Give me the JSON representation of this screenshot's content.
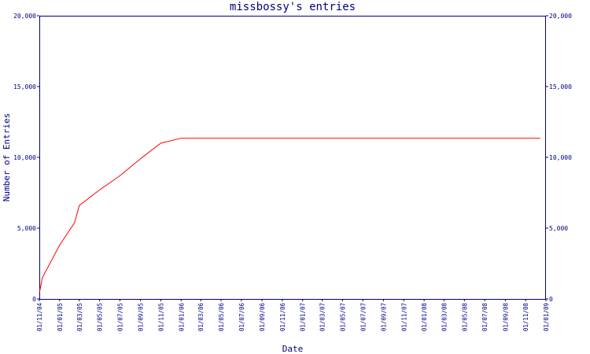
{
  "chart_data": {
    "type": "line",
    "title": "missbossy's entries",
    "xlabel": "Date",
    "ylabel": "Number of Entries",
    "ylim": [
      0,
      20000
    ],
    "yticks": [
      0,
      5000,
      10000,
      15000,
      20000
    ],
    "ytick_labels": [
      "0",
      "5,000",
      "10,000",
      "15,000",
      "20,000"
    ],
    "secondary_y_axis": true,
    "grid": false,
    "legend": "none",
    "xticks": [
      "01/11/04",
      "01/01/05",
      "01/03/05",
      "01/05/05",
      "01/07/05",
      "01/09/05",
      "01/11/05",
      "01/01/06",
      "01/03/06",
      "01/05/06",
      "01/07/06",
      "01/09/06",
      "01/11/06",
      "01/01/07",
      "01/03/07",
      "01/05/07",
      "01/07/07",
      "01/09/07",
      "01/11/07",
      "01/01/08",
      "01/03/08",
      "01/05/08",
      "01/07/08",
      "01/09/08",
      "01/11/08",
      "01/01/09"
    ],
    "series": [
      {
        "x": [
          "01/11/04",
          "10/11/04",
          "01/01/05",
          "15/02/05",
          "01/03/05",
          "01/05/05",
          "01/07/05",
          "01/09/05",
          "01/11/05",
          "01/01/06",
          "01/03/06",
          "01/05/06",
          "01/07/06",
          "01/09/06",
          "01/11/06",
          "01/01/07",
          "01/03/07",
          "01/05/07",
          "01/07/07",
          "01/09/07",
          "01/11/07",
          "01/01/08",
          "01/03/08",
          "01/05/08",
          "01/07/08",
          "01/09/08",
          "01/11/08",
          "15/12/08"
        ],
        "y": [
          400,
          1500,
          3800,
          5400,
          6600,
          7700,
          8700,
          9900,
          11000,
          11350,
          11350,
          11350,
          11350,
          11350,
          11350,
          11350,
          11350,
          11350,
          11350,
          11350,
          11350,
          11350,
          11350,
          11350,
          11350,
          11350,
          11350,
          11350
        ]
      }
    ],
    "colors": {
      "line": "#ff0000",
      "axis": "#000080",
      "text": "#000080"
    }
  }
}
